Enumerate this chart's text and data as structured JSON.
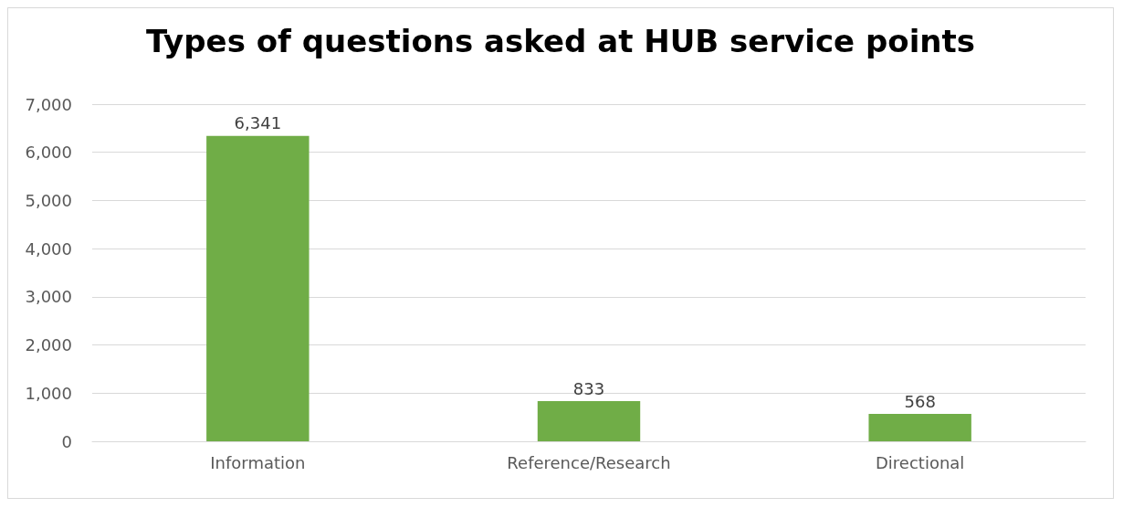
{
  "chart_data": {
    "type": "bar",
    "title": "Types of questions asked at HUB service points",
    "categories": [
      "Information",
      "Reference/Research",
      "Directional"
    ],
    "values": [
      6341,
      833,
      568
    ],
    "color": "#70ad47",
    "ylim": [
      0,
      7000
    ],
    "yticks": [
      {
        "value": 0,
        "label": "0"
      },
      {
        "value": 1000,
        "label": "1,000"
      },
      {
        "value": 2000,
        "label": "2,000"
      },
      {
        "value": 3000,
        "label": "3,000"
      },
      {
        "value": 4000,
        "label": "4,000"
      },
      {
        "value": 5000,
        "label": "5,000"
      },
      {
        "value": 6000,
        "label": "6,000"
      },
      {
        "value": 7000,
        "label": "7,000"
      }
    ],
    "value_labels": [
      "6,341",
      "833",
      "568"
    ],
    "grid": "y"
  }
}
